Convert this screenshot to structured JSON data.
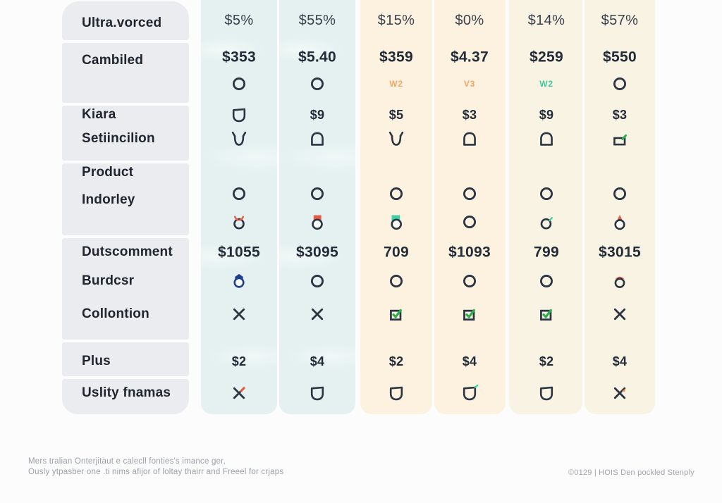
{
  "sidebar": {
    "rows": [
      {
        "label": "Ultra.vorced"
      },
      {
        "label": "Cambiled"
      },
      {
        "label": "Kiara"
      },
      {
        "label": "Setiincilion"
      },
      {
        "label": "Product"
      },
      {
        "label": "Indorley"
      },
      {
        "label": "Dutscomment"
      },
      {
        "label": "Burdcsr"
      },
      {
        "label": "Collontion"
      },
      {
        "label": "Plus"
      },
      {
        "label": "Uslity fnamas"
      }
    ]
  },
  "table": {
    "rows": [
      {
        "name": "rates",
        "cells": [
          {
            "type": "pct",
            "value": "$5%"
          },
          {
            "type": "pct",
            "value": "$55%"
          },
          {
            "type": "pct",
            "value": "$15%"
          },
          {
            "type": "pct",
            "value": "$0%"
          },
          {
            "type": "pct",
            "value": "$14%"
          },
          {
            "type": "pct",
            "value": "$57%"
          }
        ]
      },
      {
        "name": "prices-main",
        "cells": [
          {
            "type": "money-lg",
            "value": "$353"
          },
          {
            "type": "money-lg",
            "value": "$5.40"
          },
          {
            "type": "money-lg",
            "value": "$359"
          },
          {
            "type": "money-lg",
            "value": "$4.37"
          },
          {
            "type": "money-lg",
            "value": "$259"
          },
          {
            "type": "money-lg",
            "value": "$550"
          }
        ]
      },
      {
        "name": "version-markers",
        "cells": [
          {
            "type": "icon",
            "icon": "circle-icon"
          },
          {
            "type": "icon",
            "icon": "circle-icon"
          },
          {
            "type": "marker",
            "value": "W2",
            "color": "orange"
          },
          {
            "type": "marker",
            "value": "V3",
            "color": "orange"
          },
          {
            "type": "marker",
            "value": "W2",
            "color": "teal"
          },
          {
            "type": "icon",
            "icon": "circle-icon"
          }
        ]
      },
      {
        "name": "kiara",
        "cells": [
          {
            "type": "icon",
            "icon": "cup-icon"
          },
          {
            "type": "money-md",
            "value": "$9"
          },
          {
            "type": "money-md",
            "value": "$5"
          },
          {
            "type": "money-md",
            "value": "$3"
          },
          {
            "type": "money-md",
            "value": "$9"
          },
          {
            "type": "money-md",
            "value": "$3"
          }
        ]
      },
      {
        "name": "setiincilion",
        "cells": [
          {
            "type": "icon",
            "icon": "cup-flared-icon"
          },
          {
            "type": "icon",
            "icon": "dome-icon"
          },
          {
            "type": "icon",
            "icon": "cup-flared-icon"
          },
          {
            "type": "icon",
            "icon": "dome-icon"
          },
          {
            "type": "icon",
            "icon": "dome-icon"
          },
          {
            "type": "icon",
            "icon": "tray-check-icon"
          }
        ]
      },
      {
        "name": "product",
        "cells": [
          {
            "type": "icon",
            "icon": "circle-icon"
          },
          {
            "type": "icon",
            "icon": "circle-icon"
          },
          {
            "type": "icon",
            "icon": "circle-icon"
          },
          {
            "type": "icon",
            "icon": "circle-icon"
          },
          {
            "type": "icon",
            "icon": "circle-icon"
          },
          {
            "type": "icon",
            "icon": "circle-icon"
          }
        ]
      },
      {
        "name": "indorley",
        "cells": [
          {
            "type": "icon",
            "icon": "circle-antennae-icon"
          },
          {
            "type": "icon",
            "icon": "circle-square-red-icon"
          },
          {
            "type": "icon",
            "icon": "circle-square-teal-icon"
          },
          {
            "type": "icon",
            "icon": "circle-icon"
          },
          {
            "type": "icon",
            "icon": "circle-tick-icon"
          },
          {
            "type": "icon",
            "icon": "circle-triangle-icon"
          }
        ]
      },
      {
        "name": "dutscomment",
        "cells": [
          {
            "type": "money-lg",
            "value": "$1055"
          },
          {
            "type": "money-lg",
            "value": "$3095"
          },
          {
            "type": "money-lg",
            "value": "709"
          },
          {
            "type": "money-lg",
            "value": "$1093"
          },
          {
            "type": "money-lg",
            "value": "799"
          },
          {
            "type": "money-lg",
            "value": "$3015"
          }
        ]
      },
      {
        "name": "burdcsr",
        "cells": [
          {
            "type": "icon",
            "icon": "circle-pentagon-icon"
          },
          {
            "type": "icon",
            "icon": "circle-icon"
          },
          {
            "type": "icon",
            "icon": "circle-icon"
          },
          {
            "type": "icon",
            "icon": "circle-icon"
          },
          {
            "type": "icon",
            "icon": "circle-icon"
          },
          {
            "type": "icon",
            "icon": "circle-beret-icon"
          }
        ]
      },
      {
        "name": "collontion",
        "cells": [
          {
            "type": "icon",
            "icon": "x-mark-icon"
          },
          {
            "type": "icon",
            "icon": "x-mark-icon"
          },
          {
            "type": "icon",
            "icon": "checkbox-check-icon"
          },
          {
            "type": "icon",
            "icon": "checkbox-check-icon"
          },
          {
            "type": "icon",
            "icon": "checkbox-check-icon"
          },
          {
            "type": "icon",
            "icon": "x-mark-icon"
          }
        ]
      },
      {
        "name": "plus",
        "cells": [
          {
            "type": "money-md",
            "value": "$2"
          },
          {
            "type": "money-md",
            "value": "$4"
          },
          {
            "type": "money-md",
            "value": "$2"
          },
          {
            "type": "money-md",
            "value": "$4"
          },
          {
            "type": "money-md",
            "value": "$2"
          },
          {
            "type": "money-md",
            "value": "$4"
          }
        ]
      },
      {
        "name": "uslity-fnamas",
        "cells": [
          {
            "type": "icon",
            "icon": "x-red-tip-icon"
          },
          {
            "type": "icon",
            "icon": "cup-icon"
          },
          {
            "type": "icon",
            "icon": "cup-icon"
          },
          {
            "type": "icon",
            "icon": "cup-tip-teal-icon"
          },
          {
            "type": "icon",
            "icon": "cup-icon"
          },
          {
            "type": "icon",
            "icon": "x-orange-flag-icon"
          }
        ]
      }
    ]
  },
  "footer": {
    "note_line1": "Mers tralian Onterjitaut e calecll fonties's imance ger,",
    "note_line2": "Ously ytpasber one .ti nims afijor of loltay thairr and Freeel for crjaps",
    "copyright": "©0129 | HOIS Den pockled Stenply"
  },
  "colors": {
    "ink": "#2a3442",
    "red": "#e85c44",
    "orange_flag": "#ef8a4a",
    "teal": "#3fcfa4",
    "green": "#2fae4e",
    "navy": "#1e3e8e",
    "marker_orange": "#f2a667",
    "marker_teal": "#3fc9a2",
    "panel_blue": "#e4f1f0",
    "panel_cream": "#fcf2df",
    "panel_cream2": "#f9f3e4",
    "sidebar_gray": "#ebecf0"
  }
}
